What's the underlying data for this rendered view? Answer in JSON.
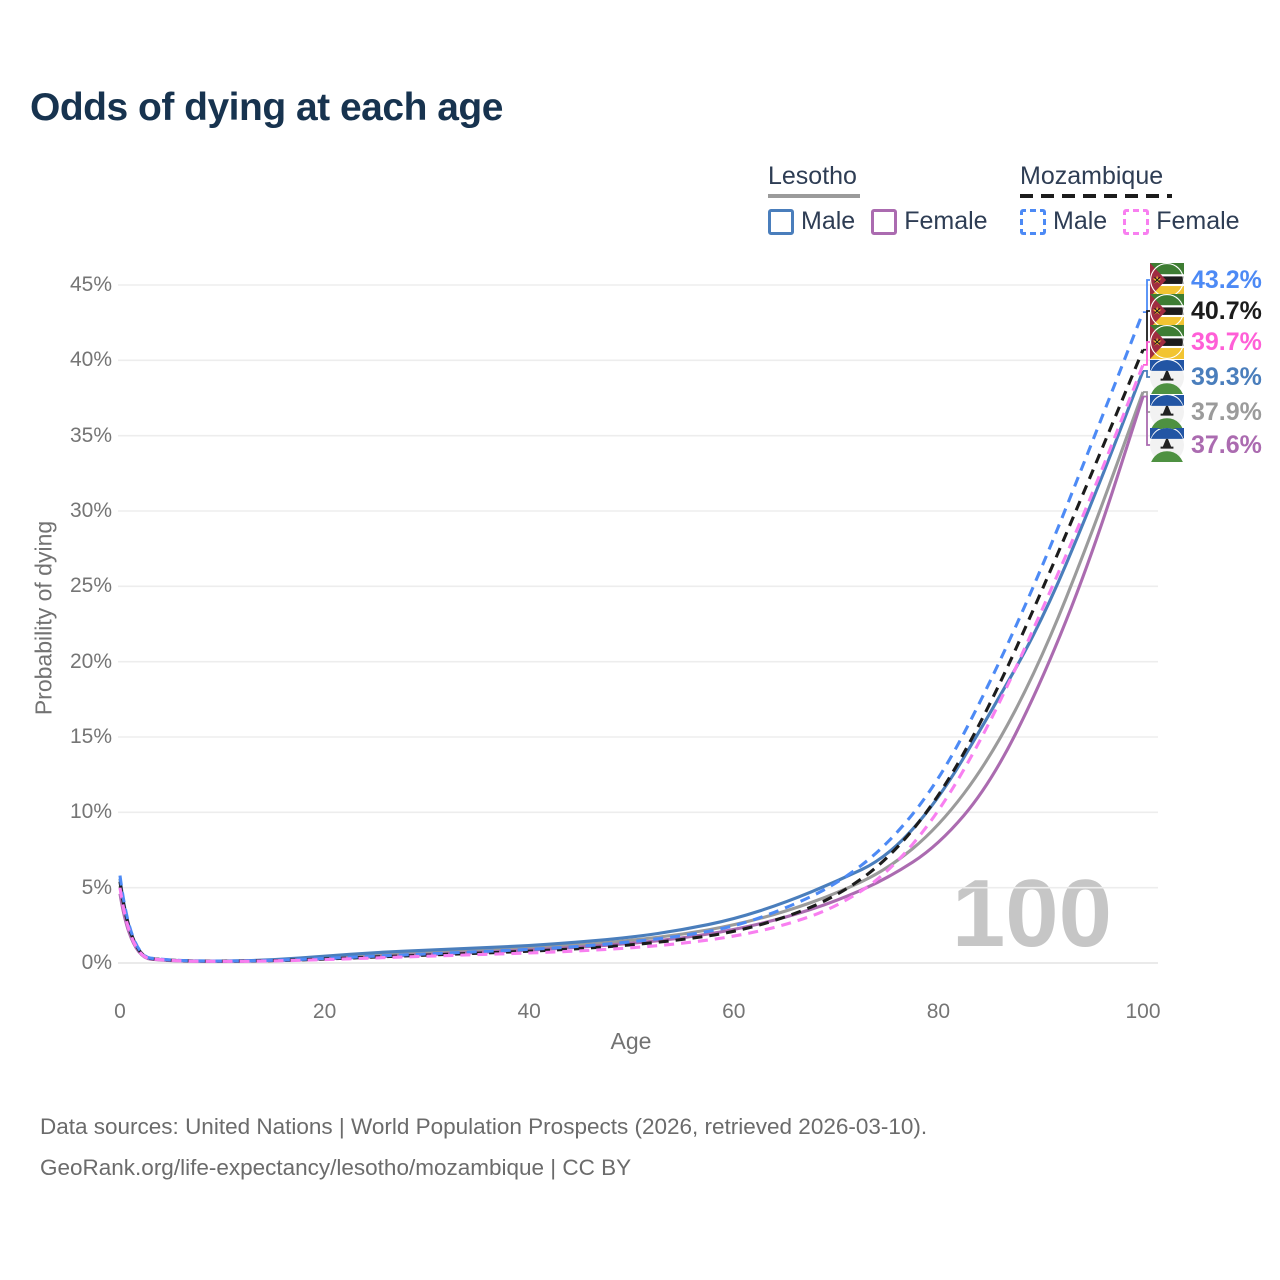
{
  "title": "Odds of dying at each age",
  "legend": {
    "groups": [
      {
        "name": "Lesotho",
        "line_style": "solid",
        "line_color": "#9b9b9b",
        "items": [
          {
            "label": "Male",
            "color": "#4a7ebc",
            "style": "solid"
          },
          {
            "label": "Female",
            "color": "#ab6bb0",
            "style": "solid"
          }
        ]
      },
      {
        "name": "Mozambique",
        "line_style": "dashed",
        "line_color": "#1c1c1c",
        "items": [
          {
            "label": "Male",
            "color": "#4d8af5",
            "style": "dashed"
          },
          {
            "label": "Female",
            "color": "#f87ff0",
            "style": "dashed"
          }
        ]
      }
    ]
  },
  "chart_data": {
    "type": "line",
    "title": "Odds of dying at each age",
    "xlabel": "Age",
    "ylabel": "Probability of dying",
    "xlim": [
      0,
      100
    ],
    "ylim": [
      0,
      45
    ],
    "grid": "horizontal-only",
    "legend_position": "top-right",
    "x_ticks": [
      {
        "v": 0,
        "label": "0"
      },
      {
        "v": 20,
        "label": "20"
      },
      {
        "v": 40,
        "label": "40"
      },
      {
        "v": 60,
        "label": "60"
      },
      {
        "v": 80,
        "label": "80"
      },
      {
        "v": 100,
        "label": "100"
      }
    ],
    "y_ticks": [
      {
        "v": 0,
        "label": "0%"
      },
      {
        "v": 5,
        "label": "5%"
      },
      {
        "v": 10,
        "label": "10%"
      },
      {
        "v": 15,
        "label": "15%"
      },
      {
        "v": 20,
        "label": "20%"
      },
      {
        "v": 25,
        "label": "25%"
      },
      {
        "v": 30,
        "label": "30%"
      },
      {
        "v": 35,
        "label": "35%"
      },
      {
        "v": 40,
        "label": "40%"
      },
      {
        "v": 45,
        "label": "45%"
      }
    ],
    "x": [
      0,
      1,
      5,
      10,
      15,
      20,
      25,
      30,
      35,
      40,
      45,
      50,
      55,
      60,
      65,
      70,
      75,
      80,
      85,
      90,
      95,
      100
    ],
    "series": [
      {
        "name": "Mozambique Male",
        "country": "mozambique",
        "sex": "male",
        "style": "dashed",
        "color": "#4d8af5",
        "end_label": "43.2%",
        "label_color": "#4d8af5",
        "values": [
          5.8,
          0.48,
          0.16,
          0.12,
          0.17,
          0.3,
          0.46,
          0.6,
          0.75,
          0.9,
          1.1,
          1.4,
          1.8,
          2.4,
          3.6,
          5.2,
          7.8,
          12.0,
          18.5,
          26.0,
          34.5,
          43.2
        ]
      },
      {
        "name": "Mozambique Both sexes",
        "country": "mozambique",
        "sex": "both",
        "style": "dashed",
        "color": "#1c1c1c",
        "end_label": "40.7%",
        "label_color": "#1c1c1c",
        "values": [
          5.4,
          0.45,
          0.15,
          0.11,
          0.15,
          0.26,
          0.4,
          0.52,
          0.65,
          0.78,
          0.95,
          1.2,
          1.55,
          2.05,
          3.0,
          4.4,
          6.8,
          10.9,
          17.0,
          24.5,
          32.5,
          40.7
        ]
      },
      {
        "name": "Mozambique Female",
        "country": "mozambique",
        "sex": "female",
        "style": "dashed",
        "color": "#f87ff0",
        "end_label": "39.7%",
        "label_color": "#ff5fd7",
        "values": [
          5.0,
          0.42,
          0.14,
          0.1,
          0.13,
          0.22,
          0.34,
          0.45,
          0.56,
          0.66,
          0.8,
          1.0,
          1.3,
          1.75,
          2.5,
          3.7,
          5.9,
          9.9,
          15.8,
          23.2,
          31.0,
          39.7
        ]
      },
      {
        "name": "Lesotho Male",
        "country": "lesotho",
        "sex": "male",
        "style": "solid",
        "color": "#4a7ebc",
        "end_label": "39.3%",
        "label_color": "#4a7ebc",
        "values": [
          5.6,
          0.45,
          0.15,
          0.12,
          0.2,
          0.45,
          0.7,
          0.85,
          1.0,
          1.15,
          1.4,
          1.7,
          2.2,
          2.9,
          4.0,
          5.4,
          7.0,
          10.8,
          16.5,
          22.5,
          30.5,
          39.3
        ]
      },
      {
        "name": "Lesotho Both sexes",
        "country": "lesotho",
        "sex": "both",
        "style": "solid",
        "color": "#9b9b9b",
        "end_label": "37.9%",
        "label_color": "#9b9b9b",
        "values": [
          5.1,
          0.42,
          0.14,
          0.11,
          0.17,
          0.36,
          0.56,
          0.7,
          0.85,
          1.0,
          1.2,
          1.5,
          1.9,
          2.5,
          3.4,
          4.6,
          6.2,
          9.0,
          13.5,
          20.0,
          28.5,
          37.9
        ]
      },
      {
        "name": "Lesotho Female",
        "country": "lesotho",
        "sex": "female",
        "style": "solid",
        "color": "#ab6bb0",
        "end_label": "37.6%",
        "label_color": "#ab6bb0",
        "values": [
          4.6,
          0.38,
          0.13,
          0.1,
          0.14,
          0.26,
          0.42,
          0.55,
          0.7,
          0.85,
          1.05,
          1.3,
          1.65,
          2.2,
          3.0,
          4.1,
          5.6,
          7.8,
          11.8,
          18.5,
          27.0,
          37.6
        ]
      }
    ]
  },
  "watermark": "100",
  "footer": {
    "line1": "Data sources: United Nations | World Population Prospects (2026, retrieved 2026-03-10).",
    "line2": "GeoRank.org/life-expectancy/lesotho/mozambique | CC BY"
  }
}
